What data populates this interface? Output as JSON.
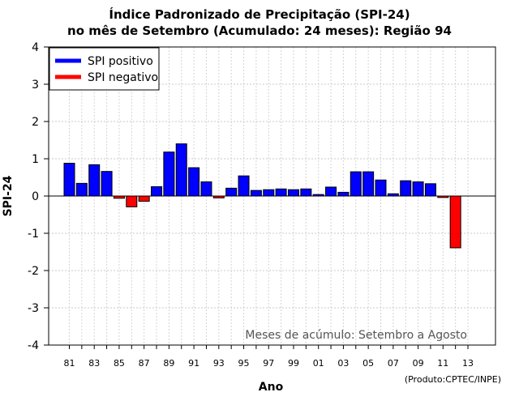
{
  "chart_data": {
    "type": "bar",
    "title": "Índice Padronizado de Precipitação (SPI-24)",
    "subtitle": "no mês de Setembro (Acumulado: 24 meses): Região 94",
    "xlabel": "Ano",
    "ylabel": "SPI-24",
    "ylim": [
      -4,
      4
    ],
    "yticks": [
      -4,
      -3,
      -2,
      -1,
      0,
      1,
      2,
      3,
      4
    ],
    "years": [
      "81",
      "82",
      "83",
      "84",
      "85",
      "86",
      "87",
      "88",
      "89",
      "90",
      "91",
      "92",
      "93",
      "94",
      "95",
      "96",
      "97",
      "98",
      "99",
      "00",
      "01",
      "02",
      "03",
      "04",
      "05",
      "06",
      "07",
      "08",
      "09",
      "10",
      "11",
      "12",
      "13"
    ],
    "xtick_labels": [
      "81",
      "83",
      "85",
      "87",
      "89",
      "91",
      "93",
      "95",
      "97",
      "99",
      "01",
      "03",
      "05",
      "07",
      "09",
      "11",
      "13"
    ],
    "values": [
      0.88,
      0.34,
      0.84,
      0.66,
      -0.06,
      -0.29,
      -0.14,
      0.25,
      1.18,
      1.4,
      0.76,
      0.38,
      -0.05,
      0.21,
      0.54,
      0.15,
      0.17,
      0.19,
      0.17,
      0.19,
      0.04,
      0.24,
      0.1,
      0.65,
      0.65,
      0.43,
      0.06,
      0.41,
      0.38,
      0.33,
      -0.04,
      -1.39,
      null
    ],
    "grid": true,
    "legend": {
      "position": "top-left",
      "entries": [
        {
          "label": "SPI positivo",
          "color": "#0000ff"
        },
        {
          "label": "SPI negativo",
          "color": "#ff0000"
        }
      ]
    },
    "annotation": "Meses de acúmulo: Setembro a Agosto",
    "positive_color": "#0000ff",
    "negative_color": "#ff0000"
  },
  "credit": "(Produto:CPTEC/INPE)"
}
